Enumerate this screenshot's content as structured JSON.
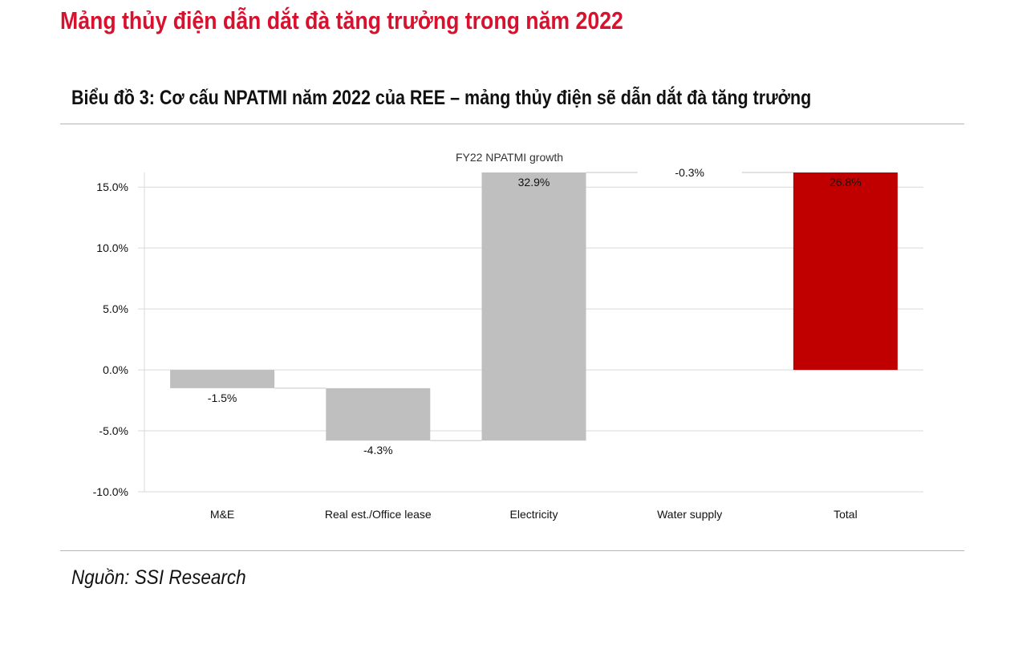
{
  "page": {
    "heading": "Mảng thủy điện dẫn dắt đà tăng trưởng trong năm 2022",
    "chart_caption": "Biểu đồ 3: Cơ cấu NPATMI năm 2022 của REE – mảng thủy điện sẽ dẫn dắt đà tăng trưởng",
    "source": "Nguồn: SSI Research"
  },
  "colors": {
    "heading": "#d7112e",
    "bar_gray": "#bfbfbf",
    "bar_total": "#c00000",
    "gridline": "#d9d9d9",
    "text": "#111111"
  },
  "chart_data": {
    "type": "bar",
    "subtype": "waterfall",
    "title": "FY22 NPATMI growth",
    "xlabel": "",
    "ylabel": "",
    "categories": [
      "M&E",
      "Real est./Office lease",
      "Electricity",
      "Water supply",
      "Total"
    ],
    "values": [
      -1.5,
      -4.3,
      32.9,
      -0.3,
      26.8
    ],
    "value_labels": [
      "-1.5%",
      "-4.3%",
      "32.9%",
      "-0.3%",
      "26.8%"
    ],
    "bar_kind": [
      "change",
      "change",
      "change",
      "change",
      "total"
    ],
    "yticks": [
      "15.0%",
      "10.0%",
      "5.0%",
      "0.0%",
      "-5.0%",
      "-10.0%"
    ],
    "ytick_values": [
      15,
      10,
      5,
      0,
      -5,
      -10
    ],
    "ylim": [
      -10,
      16.2
    ],
    "grid": true,
    "legend": "none"
  }
}
